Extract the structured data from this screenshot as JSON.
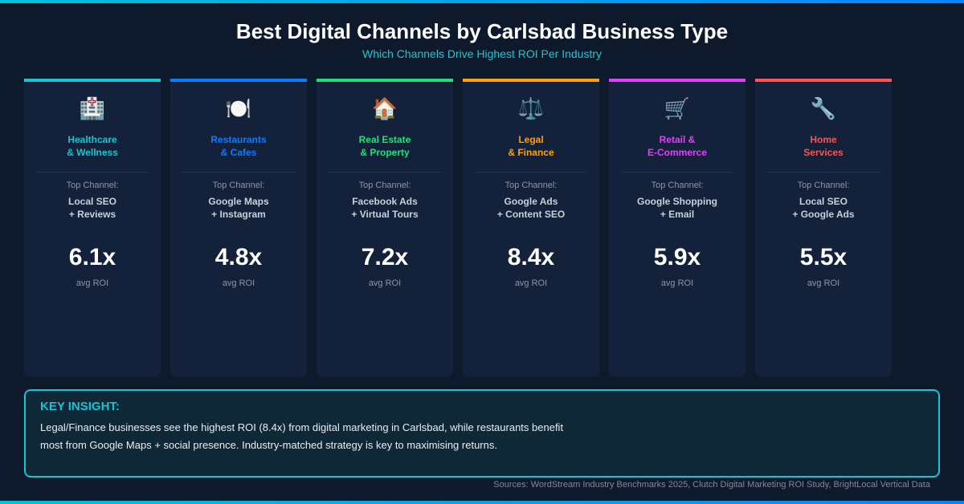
{
  "header": {
    "title": "Best Digital Channels by Carlsbad Business Type",
    "subtitle": "Which Channels Drive Highest ROI Per Industry"
  },
  "top_channel_label": "Top Channel:",
  "roi_label": "avg ROI",
  "cards": [
    {
      "icon": "hospital-icon",
      "emoji": "🏥",
      "title1": "Healthcare",
      "title2": "& Wellness",
      "channel1": "Local SEO",
      "channel2": "+ Reviews",
      "roi": "6.1x",
      "color": "#16c4d4"
    },
    {
      "icon": "plate-cutlery-icon",
      "emoji": "🍽️",
      "title1": "Restaurants",
      "title2": "& Cafes",
      "channel1": "Google Maps",
      "channel2": "+ Instagram",
      "roi": "4.8x",
      "color": "#0a7cff"
    },
    {
      "icon": "house-icon",
      "emoji": "🏠",
      "title1": "Real Estate",
      "title2": "& Property",
      "channel1": "Facebook Ads",
      "channel2": "+ Virtual Tours",
      "roi": "7.2x",
      "color": "#1ee07a"
    },
    {
      "icon": "scales-icon",
      "emoji": "⚖️",
      "title1": "Legal",
      "title2": "& Finance",
      "channel1": "Google Ads",
      "channel2": "+ Content SEO",
      "roi": "8.4x",
      "color": "#ff9f0a"
    },
    {
      "icon": "shopping-cart-icon",
      "emoji": "🛒",
      "title1": "Retail &",
      "title2": "E-Commerce",
      "channel1": "Google Shopping",
      "channel2": "+ Email",
      "roi": "5.9x",
      "color": "#e040fb"
    },
    {
      "icon": "wrench-icon",
      "emoji": "🔧",
      "title1": "Home",
      "title2": "Services",
      "channel1": "Local SEO",
      "channel2": "+ Google Ads",
      "roi": "5.5x",
      "color": "#ff5252"
    }
  ],
  "insight": {
    "title": "KEY INSIGHT:",
    "text": "Legal/Finance businesses see the highest ROI (8.4x) from digital marketing in Carlsbad, while restaurants benefit most from Google Maps + social presence. Industry-matched strategy is key to maximising returns."
  },
  "sources": "Sources: WordStream Industry Benchmarks 2025, Clutch Digital Marketing ROI Study, BrightLocal Vertical Data"
}
